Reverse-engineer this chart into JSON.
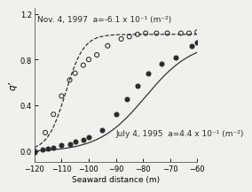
{
  "xlabel": "Seaward distance (m)",
  "ylabel": "q’",
  "xlim": [
    -120,
    -60
  ],
  "ylim": [
    -0.1,
    1.25
  ],
  "xticks": [
    -120,
    -110,
    -100,
    -90,
    -80,
    -70,
    -60
  ],
  "yticks": [
    0.0,
    0.4,
    0.8,
    1.2
  ],
  "label_nov": "Nov. 4, 1997  a=-6.1 x 10⁻¹ (m⁻²)",
  "label_jul": "July 4, 1995  a=4.4 x 10⁻¹ (m⁻²)",
  "nov_data_x": [
    -120,
    -116,
    -113,
    -110,
    -107,
    -105,
    -102,
    -100,
    -97,
    -93,
    -88,
    -85,
    -82,
    -79,
    -75,
    -71,
    -66,
    -63,
    -60
  ],
  "nov_data_y": [
    0.0,
    0.16,
    0.32,
    0.48,
    0.62,
    0.68,
    0.75,
    0.8,
    0.84,
    0.92,
    0.98,
    1.0,
    1.02,
    1.03,
    1.03,
    1.03,
    1.03,
    1.03,
    1.04
  ],
  "jul_data_x": [
    -120,
    -117,
    -115,
    -113,
    -110,
    -107,
    -105,
    -102,
    -100,
    -95,
    -90,
    -86,
    -82,
    -78,
    -73,
    -68,
    -62,
    -60
  ],
  "jul_data_y": [
    -0.01,
    0.01,
    0.02,
    0.03,
    0.05,
    0.06,
    0.08,
    0.1,
    0.12,
    0.18,
    0.32,
    0.45,
    0.57,
    0.68,
    0.76,
    0.82,
    0.92,
    0.95
  ],
  "bg_color": "#f2f0ed",
  "line_color": "#2a2a2a",
  "fontsize": 6.5
}
